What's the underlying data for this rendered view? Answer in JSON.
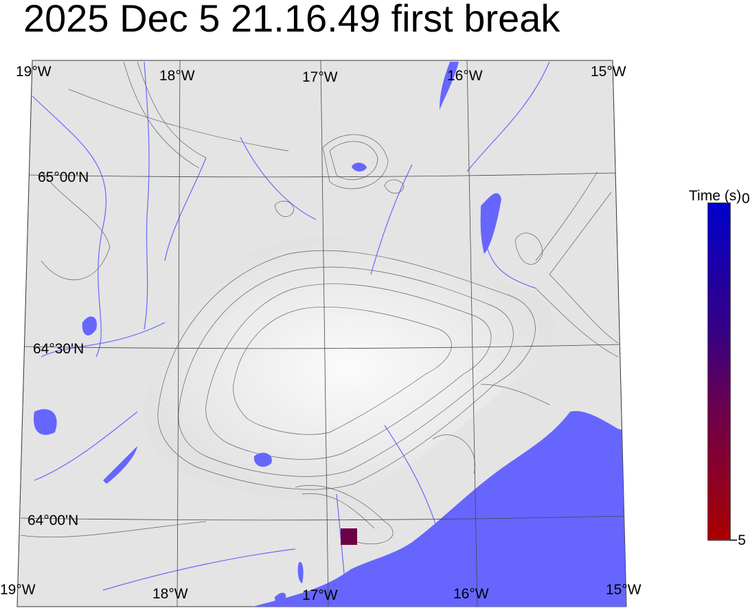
{
  "title": "2025 Dec 5 21.16.49 first break",
  "map": {
    "longitude_labels": [
      "19°W",
      "18°W",
      "17°W",
      "16°W",
      "15°W"
    ],
    "latitude_labels": [
      "65°00'N",
      "64°30'N",
      "64°00'N"
    ],
    "colors": {
      "land": "#e6e6e6",
      "water": "#6666ff",
      "contour": "#333333",
      "graticule": "#444444"
    },
    "marker": {
      "shape": "square",
      "color": "#6e0044"
    }
  },
  "colorbar": {
    "title": "Time (s)",
    "max_label": "0",
    "min_label": "−5",
    "range": [
      -5,
      0
    ],
    "color_max": "#0000cc",
    "color_min": "#aa0000"
  }
}
